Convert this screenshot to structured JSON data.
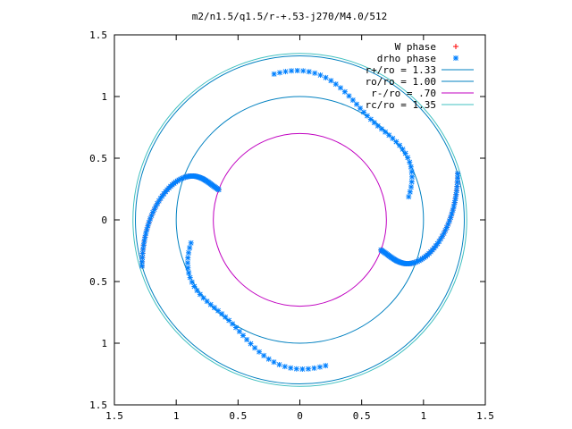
{
  "chart_data": {
    "type": "scatter",
    "title": "m2/n1.5/q1.5/r-+.53-j270/M4.0/512",
    "xlabel": "",
    "ylabel": "",
    "xlim": [
      -1.5,
      1.5
    ],
    "ylim": [
      -1.5,
      1.5
    ],
    "x_ticks": [
      {
        "value": -1.5,
        "label": "1.5"
      },
      {
        "value": -1.0,
        "label": "1"
      },
      {
        "value": -0.5,
        "label": "0.5"
      },
      {
        "value": 0.0,
        "label": "0"
      },
      {
        "value": 0.5,
        "label": "0.5"
      },
      {
        "value": 1.0,
        "label": "1"
      },
      {
        "value": 1.5,
        "label": "1.5"
      }
    ],
    "y_ticks": [
      {
        "value": 1.5,
        "label": "1.5"
      },
      {
        "value": 1.0,
        "label": "1"
      },
      {
        "value": 0.5,
        "label": "0.5"
      },
      {
        "value": 0.0,
        "label": "0"
      },
      {
        "value": -0.5,
        "label": "0.5"
      },
      {
        "value": -1.0,
        "label": "1"
      },
      {
        "value": -1.5,
        "label": "1.5"
      }
    ],
    "grid": false,
    "legend_position": "top-right",
    "series": [
      {
        "name": "W phase",
        "kind": "points",
        "marker": "plus",
        "color": "#ff0000",
        "arcs": [
          {
            "center_angle_deg": 0,
            "gamma_deg": 45
          },
          {
            "center_angle_deg": 180,
            "gamma_deg": 45
          }
        ]
      },
      {
        "name": "drho phase",
        "kind": "points",
        "marker": "star",
        "color": "#0080ff",
        "arcs": [
          {
            "center_angle_deg": 0,
            "gamma_deg": 45
          },
          {
            "center_angle_deg": 180,
            "gamma_deg": 45
          }
        ],
        "spirals": [
          {
            "start_angle_deg": 12,
            "end_angle_deg": 100
          },
          {
            "start_angle_deg": 192,
            "end_angle_deg": 280
          }
        ]
      },
      {
        "name": "r+/ro = 1.33",
        "kind": "circle",
        "radius": 1.33,
        "color": "#0080c0"
      },
      {
        "name": "ro/ro = 1.00",
        "kind": "circle",
        "radius": 1.0,
        "color": "#0080c0"
      },
      {
        "name": "r-/ro =  .70",
        "kind": "circle",
        "radius": 0.7,
        "color": "#c000c0"
      },
      {
        "name": "rc/ro = 1.35",
        "kind": "circle",
        "radius": 1.35,
        "color": "#40c0c0"
      }
    ]
  }
}
